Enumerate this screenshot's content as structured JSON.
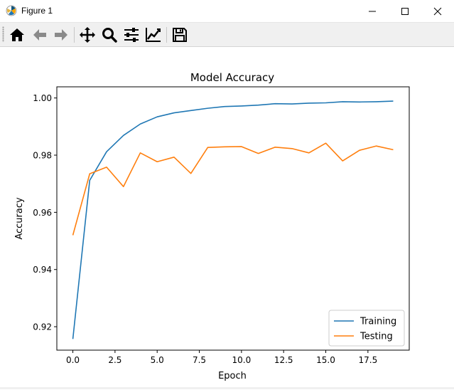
{
  "window": {
    "title": "Figure 1",
    "icon": "matplotlib-icon"
  },
  "toolbar": {
    "buttons": [
      {
        "name": "home",
        "icon": "home-icon"
      },
      {
        "name": "back",
        "icon": "back-arrow-icon"
      },
      {
        "name": "forward",
        "icon": "forward-arrow-icon"
      },
      {
        "name": "pan",
        "icon": "pan-move-icon"
      },
      {
        "name": "zoom",
        "icon": "zoom-magnifier-icon"
      },
      {
        "name": "configure-subplots",
        "icon": "sliders-icon"
      },
      {
        "name": "edit-axis",
        "icon": "line-chart-icon"
      },
      {
        "name": "save",
        "icon": "floppy-disk-icon"
      }
    ]
  },
  "chart_data": {
    "type": "line",
    "title": "Model Accuracy",
    "xlabel": "Epoch",
    "ylabel": "Accuracy",
    "xlim": [
      -0.95,
      19.95
    ],
    "ylim": [
      0.9118,
      1.0039
    ],
    "xticks": [
      0.0,
      2.5,
      5.0,
      7.5,
      10.0,
      12.5,
      15.0,
      17.5
    ],
    "xtick_labels": [
      "0.0",
      "2.5",
      "5.0",
      "7.5",
      "10.0",
      "12.5",
      "15.0",
      "17.5"
    ],
    "yticks": [
      0.92,
      0.94,
      0.96,
      0.98,
      1.0
    ],
    "ytick_labels": [
      "0.92",
      "0.94",
      "0.96",
      "0.98",
      "1.00"
    ],
    "grid": false,
    "legend": {
      "position": "lower-right"
    },
    "x": [
      0,
      1,
      2,
      3,
      4,
      5,
      6,
      7,
      8,
      9,
      10,
      11,
      12,
      13,
      14,
      15,
      16,
      17,
      18,
      19
    ],
    "series": [
      {
        "name": "Training",
        "color": "#1f77b4",
        "values": [
          0.9157,
          0.9712,
          0.9812,
          0.9869,
          0.9909,
          0.9934,
          0.9948,
          0.9956,
          0.9964,
          0.997,
          0.9972,
          0.9975,
          0.998,
          0.9979,
          0.9982,
          0.9983,
          0.9987,
          0.9986,
          0.9987,
          0.9989
        ]
      },
      {
        "name": "Testing",
        "color": "#ff7f0e",
        "values": [
          0.952,
          0.9735,
          0.9758,
          0.969,
          0.9808,
          0.9777,
          0.9793,
          0.9736,
          0.9827,
          0.9829,
          0.983,
          0.9806,
          0.9828,
          0.9823,
          0.9808,
          0.9842,
          0.978,
          0.9817,
          0.9832,
          0.9819
        ]
      }
    ]
  }
}
